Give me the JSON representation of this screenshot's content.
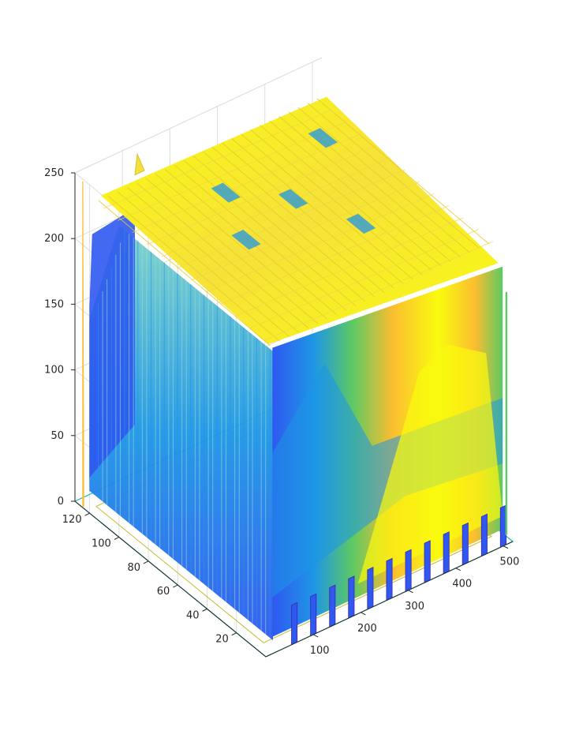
{
  "chart_data": {
    "type": "surface",
    "title": "",
    "xlabel": "",
    "ylabel": "",
    "zlabel": "",
    "grid": true,
    "colormap": "parula",
    "colormap_colors": [
      "#3e26a8",
      "#2f58f0",
      "#1e96e6",
      "#13bcc0",
      "#5ec962",
      "#c3bd2e",
      "#fbbd30",
      "#f9fb0e"
    ],
    "xlim": [
      0,
      520
    ],
    "ylim": [
      0,
      130
    ],
    "zlim": [
      0,
      250
    ],
    "x_ticks": [
      "100",
      "200",
      "300",
      "400",
      "500"
    ],
    "y_ticks": [
      "20",
      "40",
      "60",
      "80",
      "100",
      "120"
    ],
    "z_ticks": [
      "0",
      "50",
      "100",
      "150",
      "200",
      "250"
    ],
    "x_tick_values": [
      100,
      200,
      300,
      400,
      500
    ],
    "y_tick_values": [
      20,
      40,
      60,
      80,
      100,
      120
    ],
    "z_tick_values": [
      0,
      50,
      100,
      150,
      200,
      250
    ],
    "surface_summary": {
      "plateau_z": 230,
      "rear_peak_z": 245,
      "front_dome_peak_z": 160,
      "front_dome_x": 390,
      "floor_z": 5,
      "comb_teeth_x": [
        60,
        100,
        140,
        180,
        220,
        260,
        300,
        340,
        380,
        420,
        460,
        500
      ]
    }
  }
}
